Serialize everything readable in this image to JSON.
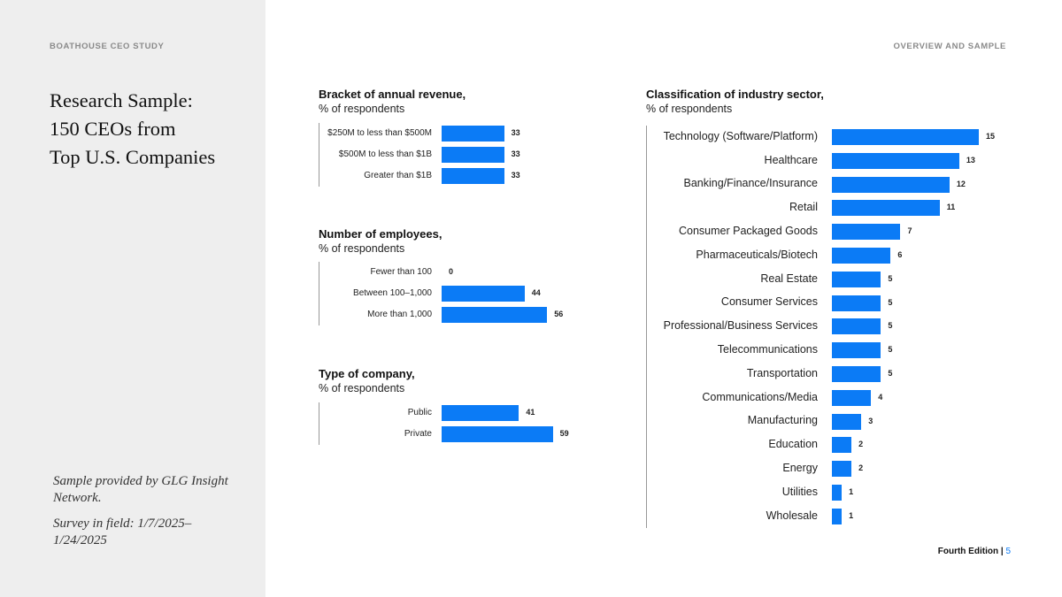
{
  "header": {
    "left_label": "BOATHOUSE CEO STUDY",
    "right_label": "OVERVIEW AND SAMPLE"
  },
  "sidebar": {
    "title_lines": [
      "Research Sample:",
      "150 CEOs from",
      "Top U.S. Companies"
    ],
    "note_1": "Sample provided by GLG Insight Network.",
    "note_2": "Survey in field: 1/7/2025–1/24/2025"
  },
  "footer": {
    "edition": "Fourth Edition |",
    "page": "5"
  },
  "colors": {
    "bar": "#0b7bf6",
    "sidebar_bg": "#eeeeee"
  },
  "chart_data": [
    {
      "type": "bar",
      "orientation": "horizontal",
      "title": "Bracket of annual revenue,",
      "subtitle": "% of respondents",
      "categories": [
        "$250M to less than $500M",
        "$500M to less than $1B",
        "Greater than $1B"
      ],
      "values": [
        33,
        33,
        33
      ]
    },
    {
      "type": "bar",
      "orientation": "horizontal",
      "title": "Number of employees,",
      "subtitle": "% of respondents",
      "categories": [
        "Fewer than 100",
        "Between 100–1,000",
        "More than 1,000"
      ],
      "values": [
        0,
        44,
        56
      ]
    },
    {
      "type": "bar",
      "orientation": "horizontal",
      "title": "Type of company,",
      "subtitle": "% of respondents",
      "categories": [
        "Public",
        "Private"
      ],
      "values": [
        41,
        59
      ]
    },
    {
      "type": "bar",
      "orientation": "horizontal",
      "title": "Classification of industry sector,",
      "subtitle": "% of respondents",
      "categories": [
        "Technology (Software/Platform)",
        "Healthcare",
        "Banking/Finance/Insurance",
        "Retail",
        "Consumer Packaged Goods",
        "Pharmaceuticals/Biotech",
        "Real Estate",
        "Consumer Services",
        "Professional/Business Services",
        "Telecommunications",
        "Transportation",
        "Communications/Media",
        "Manufacturing",
        "Education",
        "Energy",
        "Utilities",
        "Wholesale"
      ],
      "values": [
        15,
        13,
        12,
        11,
        7,
        6,
        5,
        5,
        5,
        5,
        5,
        4,
        3,
        2,
        2,
        1,
        1
      ]
    }
  ]
}
